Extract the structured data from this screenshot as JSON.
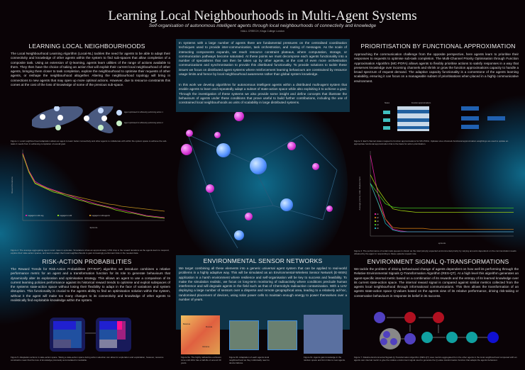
{
  "title": "Learning Local Neighbourhoods in Multi-Agent Systems",
  "subtitle": "Self-organisation of autonomous intelligent agents through local neighbourhoods of connectivity and knowledge",
  "author": "NIALL CREECH, Kings College London",
  "sections": {
    "lln": {
      "heading": "LEARNING LOCAL NEIGHBOURHOODS",
      "text": "The Local Neighbourhood Learning Algorithm (Local-NL) tackles the need for agents to be able to adapt their connectivity and knowledge of other agents within the system to find sub-spaces that allow completion of a composite task. Using an extension of Q-learning, agents learn utilities of the range of actions available to them. They then have the choice of taking an action that will exploit their current local neighbourhood of other agents, bringing them closer to task completion, explore the neighbourhood to optimise their requests of other agents, or reshape the neighbourhood altogether. Altering the neighbourhood topology will bring in connections to new agents that may open up more optimal actions. However, due to resource constraints this comes at the cost of the loss of knowledge of some of the previous sub-space.",
      "legend": [
        "Agent optimised for efficiently performing action 1",
        "Agent optimised for efficiently performing action 2"
      ],
      "fig1": "Figure 1. Local neighbourhood adaptation allows an agent to learn better connectivity and other agents to collaborate with within the system space to achieve the sub-tasks it needs from in achieving completion of overall goal.",
      "fig2": "Figure 2. The average aggregating agent return rates in episodes. Simulations show an approximately 4-5% drop in the reward iterations as the agents learn to respond, explore their state-action spaces, and learn to adapt their local neighbourhoods to gain increasingly performant links in the needed data."
    },
    "intro": {
      "p1": "In systems with a large number of agents there are fundamental pressures on the centralised coordination techniques used to provide inter-communication, task orchestration, and routing of messages. As the scale of interacting components expands, we reach resource constraint plateaus, where computation, storage, or communication pathways become saturated. At these points we must decompose each agents functionality into a number of specialisms that can then be taken up by other agents, at the cost of even more orchestration communications and synchronisation to provide this distributed functionality. To provide solutions to tackle these issues we focus on distributed agent systems where reinforcement learning behaviours are constrained by resource usage limits and hence by local neighbourhood awareness rather than global system knowledge.",
      "p2": "In this work we develop algorithms for autonomous intelligent agents within a distributed multi-agent system that enable agents to learn and repeatedly adapt a subset of state-action space while also exploiting it to achieve a goal. Through the investigation of these systems we also provide some insight and define concepts that illustrate the behaviours of agents under these conditions that prove useful to build further contributions, including the use of constrained local neighbourhoods as units of scalability in large distributed systems."
    },
    "pfa": {
      "heading": "PRIORITISATION BY FUNCTIONAL APPROXIMATION",
      "text": "Approaching the communication challenge from the opposite perspective, here agents learn to prioritise their responses to requests to optimise sub-task completion. The Multi-Channel Priority Optimisation through Function Approximation Algorithm (MC-POFA) allows agents to flexibly prioritise actions to satisfy responses in a way that preserves knowledge over incoming channels and shrink or grow the function approximations capacity to handle a broad spectrum of request demand. The adaptive capacity functionality is a cornerstone of the agents learning scalability, ensuring it can focus on a manageable subset of prioritisations when placed in a highly communicative environment.",
      "diagram_labels": [
        "States",
        "Function approximations"
      ],
      "fig3": "Figure 3. Each channel states mapped to function approximations for MC-POFA. Updates via a channels functional approximation weightings are used to update an appropriate functional approximation that is the basis for action prioritisation.",
      "fig4": "Figure 4. The performance of certain task queues is shown as the total (simply) expected environmental priority by varying amounts dependent on the communication needs obtained by the agent in responding to these episode request rate."
    },
    "rap": {
      "heading": "RISK-ACTION PROBABILITIES",
      "text": "The Reward Trends for Risk-Action Probabilities (RT-RAP) algorithm we introduce combines a relative performance metric for an agent and a transformation function for its role to generate behaviours that dynamically alter its exploration and optimisation strategy. This allows an agent to use a comparison of its current learning policies performance against its historical reward trends to optimise and exploit subspaces of the systems state-action space without losing their flexibility to adapt in the face of variations and system disruption. This functionality is crucial to the agents ability to find an optimisation solution within the system, without it the agent will make too many changes to its connectivity and knowledge of other agents to realistically find exploitable knowledge within the system.",
      "fig5": "Figure 5. Adaptation actions in state-action space. Taking a state-action space during action selection can allow for exploration and exploitation, however, resource constraints mean that the loss of knowledge previously accumulated is inevitable."
    },
    "esn": {
      "heading": "ENVIRONMENTAL SENSOR NETWORKS",
      "text": "We target combining all these elements into a generic universal agent system that can be applied to real-world problems in a highly adaptive way. This will be simulated as an Environmental-Wireless Sensor Network (E-WSN) application in a harsh environment where resilience and self-organisation will be key to success and feasibility. To make the simulation realistic, we focus on long-term monitoring of radioactivity where conditions preclude human interference and will degrade agents in the field such as that of Chernobyls radioactive contamination. With a UAV deploying a large number of sensors over a disperse and remote geographical area, leading to a relatively ad-hoc, randomised placement of devices, using solar power cells to maintain enough energy to power themselves over a number of years.",
      "map_labels": [
        "Belarus",
        "Russia",
        "Ukraine"
      ],
      "fig6a": "Figure 6a. The highly radioactive exclusion zone until 2011 has a half-life of around 30 years.",
      "fig6b": "Figure 6b. Adaptation of each agents local neighbourhood as they individually react to device failures.",
      "fig6c": "Figure 6c. Agents gain knowledge in the random space and form links to new agents."
    },
    "esq": {
      "heading": "ENVIRONMENT SIGNAL Q-TRANSFORMATIONS",
      "text": "We tackle the problem of driving behavioural change of agents dependent on how well its performing through the Relative Environmental Signals Q-Transformation Algorithm (RES-QT). At a high level this algorithm generates an agent-specific internal metric based on a combination of its rewards and the entropy of its learned knowledge over its current state-action space. The internal reward signal is compared against similar metrics collected from the agents local neighbourhood through informational communications. This then allows the transformation of an agents state-action space Q-values based on the agents view of its relative performance, driving risk-taking or conservative behaviours in response its belief in its success.",
      "fig7": "Figure 7. Relative Environmental Signals Q-Transformation Algorithm (RES-QT) uses metrics aggregated from the other agents in the local neighbourhood compared with an agents own internal metric to give the relative environment signal used to generate the Q-value transformation function that adapts the agents behaviour."
    }
  },
  "chart_data": [
    {
      "type": "line",
      "xlabel": "Episode",
      "ylabel": "Reward Iterations",
      "legend_placement": "bottom-left",
      "series": [
        {
          "name": "Lagagent-multi-neg",
          "color": "#e020a0",
          "values": [
            95,
            70,
            55,
            50,
            46,
            43,
            40,
            37,
            34,
            31,
            28,
            26,
            23,
            21,
            19,
            17,
            15,
            13,
            11,
            9,
            7,
            6,
            5,
            4
          ]
        },
        {
          "name": "Lagagent-multi",
          "color": "#90e020",
          "values": [
            93,
            68,
            52,
            48,
            44,
            40,
            38,
            35,
            32,
            29,
            27,
            24,
            22,
            20,
            18,
            15,
            13,
            11,
            10,
            8,
            6,
            5,
            4,
            3
          ]
        },
        {
          "name": "Lagagent-multi-agents",
          "color": "#c09020",
          "values": [
            94,
            69,
            53,
            49,
            45,
            42,
            39,
            37,
            35,
            33,
            31,
            29,
            27,
            25,
            23,
            22,
            20,
            19,
            18,
            17,
            16,
            15,
            14,
            13
          ]
        }
      ]
    },
    {
      "type": "line",
      "xlabel": "episode",
      "ylabel": "Average priority order displacement",
      "legend_placement": "bottom-left",
      "series": [
        {
          "name": "s1",
          "color": "#e020a0",
          "values": [
            95,
            50,
            20,
            8,
            6,
            5,
            5,
            5,
            5,
            5,
            5,
            5,
            5,
            5,
            5,
            5,
            5,
            5,
            5,
            5
          ]
        },
        {
          "name": "s2",
          "color": "#c07010",
          "values": [
            62,
            40,
            20,
            10,
            9,
            9,
            9,
            9,
            8,
            8,
            8,
            8,
            8,
            8,
            8,
            8,
            8,
            8,
            8,
            8
          ]
        },
        {
          "name": "s3",
          "color": "#a0d010",
          "values": [
            72,
            55,
            42,
            32,
            30,
            29,
            28,
            28,
            28,
            28,
            28,
            28,
            28,
            28,
            28,
            28,
            28,
            28,
            28,
            28
          ]
        },
        {
          "name": "s4",
          "color": "#40c020",
          "values": [
            62,
            50,
            38,
            34,
            33,
            33,
            33,
            33,
            33,
            33,
            33,
            33,
            33,
            33,
            33,
            33,
            33,
            33,
            33,
            33
          ]
        },
        {
          "name": "s5",
          "color": "#20b0c0",
          "values": [
            62,
            40,
            15,
            7,
            5,
            5,
            5,
            5,
            5,
            5,
            5,
            5,
            5,
            5,
            5,
            5,
            5,
            5,
            5,
            5
          ]
        }
      ]
    }
  ],
  "colors": {
    "background": "#0a0306",
    "panel": "#0f3346",
    "agent_pink": "#d030d0",
    "agent_blue": "#5090ff"
  }
}
